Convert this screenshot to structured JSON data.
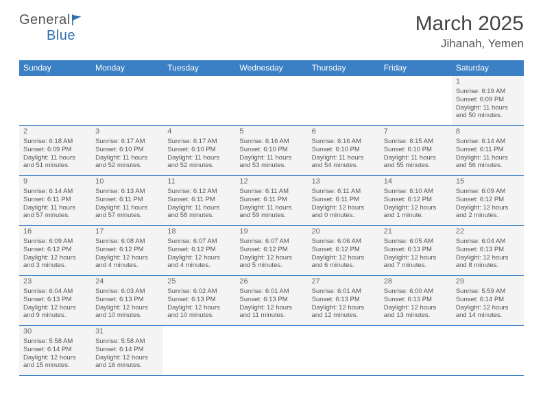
{
  "logo": {
    "text1": "General",
    "text2": "Blue"
  },
  "title": "March 2025",
  "location": "Jihanah, Yemen",
  "header_bg": "#3b7fc4",
  "cell_bg": "#f4f4f4",
  "day_names": [
    "Sunday",
    "Monday",
    "Tuesday",
    "Wednesday",
    "Thursday",
    "Friday",
    "Saturday"
  ],
  "weeks": [
    [
      null,
      null,
      null,
      null,
      null,
      null,
      {
        "n": "1",
        "sr": "Sunrise: 6:19 AM",
        "ss": "Sunset: 6:09 PM",
        "d1": "Daylight: 11 hours",
        "d2": "and 50 minutes."
      }
    ],
    [
      {
        "n": "2",
        "sr": "Sunrise: 6:18 AM",
        "ss": "Sunset: 6:09 PM",
        "d1": "Daylight: 11 hours",
        "d2": "and 51 minutes."
      },
      {
        "n": "3",
        "sr": "Sunrise: 6:17 AM",
        "ss": "Sunset: 6:10 PM",
        "d1": "Daylight: 11 hours",
        "d2": "and 52 minutes."
      },
      {
        "n": "4",
        "sr": "Sunrise: 6:17 AM",
        "ss": "Sunset: 6:10 PM",
        "d1": "Daylight: 11 hours",
        "d2": "and 52 minutes."
      },
      {
        "n": "5",
        "sr": "Sunrise: 6:16 AM",
        "ss": "Sunset: 6:10 PM",
        "d1": "Daylight: 11 hours",
        "d2": "and 53 minutes."
      },
      {
        "n": "6",
        "sr": "Sunrise: 6:16 AM",
        "ss": "Sunset: 6:10 PM",
        "d1": "Daylight: 11 hours",
        "d2": "and 54 minutes."
      },
      {
        "n": "7",
        "sr": "Sunrise: 6:15 AM",
        "ss": "Sunset: 6:10 PM",
        "d1": "Daylight: 11 hours",
        "d2": "and 55 minutes."
      },
      {
        "n": "8",
        "sr": "Sunrise: 6:14 AM",
        "ss": "Sunset: 6:11 PM",
        "d1": "Daylight: 11 hours",
        "d2": "and 56 minutes."
      }
    ],
    [
      {
        "n": "9",
        "sr": "Sunrise: 6:14 AM",
        "ss": "Sunset: 6:11 PM",
        "d1": "Daylight: 11 hours",
        "d2": "and 57 minutes."
      },
      {
        "n": "10",
        "sr": "Sunrise: 6:13 AM",
        "ss": "Sunset: 6:11 PM",
        "d1": "Daylight: 11 hours",
        "d2": "and 57 minutes."
      },
      {
        "n": "11",
        "sr": "Sunrise: 6:12 AM",
        "ss": "Sunset: 6:11 PM",
        "d1": "Daylight: 11 hours",
        "d2": "and 58 minutes."
      },
      {
        "n": "12",
        "sr": "Sunrise: 6:11 AM",
        "ss": "Sunset: 6:11 PM",
        "d1": "Daylight: 11 hours",
        "d2": "and 59 minutes."
      },
      {
        "n": "13",
        "sr": "Sunrise: 6:11 AM",
        "ss": "Sunset: 6:11 PM",
        "d1": "Daylight: 12 hours",
        "d2": "and 0 minutes."
      },
      {
        "n": "14",
        "sr": "Sunrise: 6:10 AM",
        "ss": "Sunset: 6:12 PM",
        "d1": "Daylight: 12 hours",
        "d2": "and 1 minute."
      },
      {
        "n": "15",
        "sr": "Sunrise: 6:09 AM",
        "ss": "Sunset: 6:12 PM",
        "d1": "Daylight: 12 hours",
        "d2": "and 2 minutes."
      }
    ],
    [
      {
        "n": "16",
        "sr": "Sunrise: 6:09 AM",
        "ss": "Sunset: 6:12 PM",
        "d1": "Daylight: 12 hours",
        "d2": "and 3 minutes."
      },
      {
        "n": "17",
        "sr": "Sunrise: 6:08 AM",
        "ss": "Sunset: 6:12 PM",
        "d1": "Daylight: 12 hours",
        "d2": "and 4 minutes."
      },
      {
        "n": "18",
        "sr": "Sunrise: 6:07 AM",
        "ss": "Sunset: 6:12 PM",
        "d1": "Daylight: 12 hours",
        "d2": "and 4 minutes."
      },
      {
        "n": "19",
        "sr": "Sunrise: 6:07 AM",
        "ss": "Sunset: 6:12 PM",
        "d1": "Daylight: 12 hours",
        "d2": "and 5 minutes."
      },
      {
        "n": "20",
        "sr": "Sunrise: 6:06 AM",
        "ss": "Sunset: 6:12 PM",
        "d1": "Daylight: 12 hours",
        "d2": "and 6 minutes."
      },
      {
        "n": "21",
        "sr": "Sunrise: 6:05 AM",
        "ss": "Sunset: 6:13 PM",
        "d1": "Daylight: 12 hours",
        "d2": "and 7 minutes."
      },
      {
        "n": "22",
        "sr": "Sunrise: 6:04 AM",
        "ss": "Sunset: 6:13 PM",
        "d1": "Daylight: 12 hours",
        "d2": "and 8 minutes."
      }
    ],
    [
      {
        "n": "23",
        "sr": "Sunrise: 6:04 AM",
        "ss": "Sunset: 6:13 PM",
        "d1": "Daylight: 12 hours",
        "d2": "and 9 minutes."
      },
      {
        "n": "24",
        "sr": "Sunrise: 6:03 AM",
        "ss": "Sunset: 6:13 PM",
        "d1": "Daylight: 12 hours",
        "d2": "and 10 minutes."
      },
      {
        "n": "25",
        "sr": "Sunrise: 6:02 AM",
        "ss": "Sunset: 6:13 PM",
        "d1": "Daylight: 12 hours",
        "d2": "and 10 minutes."
      },
      {
        "n": "26",
        "sr": "Sunrise: 6:01 AM",
        "ss": "Sunset: 6:13 PM",
        "d1": "Daylight: 12 hours",
        "d2": "and 11 minutes."
      },
      {
        "n": "27",
        "sr": "Sunrise: 6:01 AM",
        "ss": "Sunset: 6:13 PM",
        "d1": "Daylight: 12 hours",
        "d2": "and 12 minutes."
      },
      {
        "n": "28",
        "sr": "Sunrise: 6:00 AM",
        "ss": "Sunset: 6:13 PM",
        "d1": "Daylight: 12 hours",
        "d2": "and 13 minutes."
      },
      {
        "n": "29",
        "sr": "Sunrise: 5:59 AM",
        "ss": "Sunset: 6:14 PM",
        "d1": "Daylight: 12 hours",
        "d2": "and 14 minutes."
      }
    ],
    [
      {
        "n": "30",
        "sr": "Sunrise: 5:58 AM",
        "ss": "Sunset: 6:14 PM",
        "d1": "Daylight: 12 hours",
        "d2": "and 15 minutes."
      },
      {
        "n": "31",
        "sr": "Sunrise: 5:58 AM",
        "ss": "Sunset: 6:14 PM",
        "d1": "Daylight: 12 hours",
        "d2": "and 16 minutes."
      },
      null,
      null,
      null,
      null,
      null
    ]
  ]
}
